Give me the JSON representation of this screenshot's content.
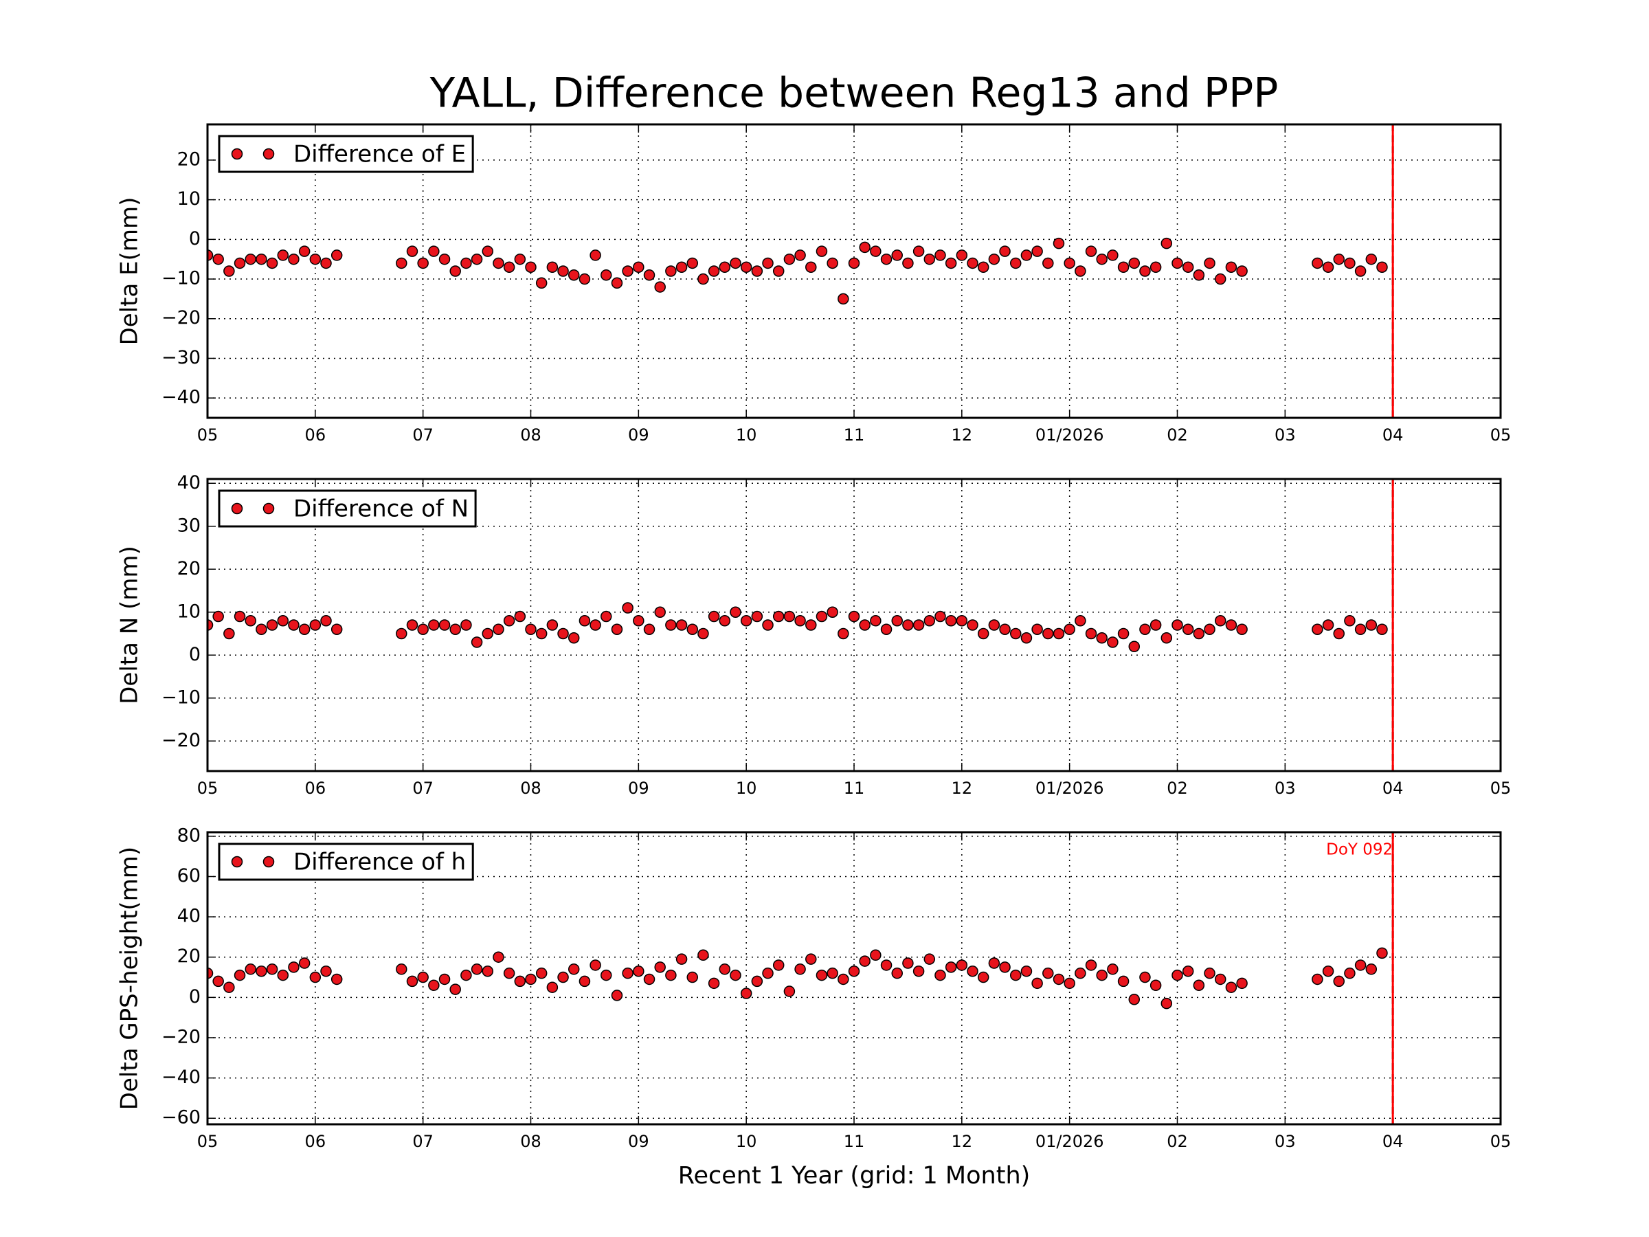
{
  "title": "YALL, Difference between Reg13 and PPP",
  "chart_data": [
    {
      "type": "scatter",
      "ylabel": "Delta E(mm)",
      "x": [
        0.0,
        0.1,
        0.2,
        0.3,
        0.4,
        0.5,
        0.6,
        0.7,
        0.8,
        0.9,
        1.0,
        1.1,
        1.2,
        1.8,
        1.9,
        2.0,
        2.1,
        2.2,
        2.3,
        2.4,
        2.5,
        2.6,
        2.7,
        2.8,
        2.9,
        3.0,
        3.1,
        3.2,
        3.3,
        3.4,
        3.5,
        3.6,
        3.7,
        3.8,
        3.9,
        4.0,
        4.1,
        4.2,
        4.3,
        4.4,
        4.5,
        4.6,
        4.7,
        4.8,
        4.9,
        5.0,
        5.1,
        5.2,
        5.3,
        5.4,
        5.5,
        5.6,
        5.7,
        5.8,
        5.9,
        6.0,
        6.1,
        6.2,
        6.3,
        6.4,
        6.5,
        6.6,
        6.7,
        6.8,
        6.9,
        7.0,
        7.1,
        7.2,
        7.3,
        7.4,
        7.5,
        7.6,
        7.7,
        7.8,
        7.9,
        8.0,
        8.1,
        8.2,
        8.3,
        8.4,
        8.5,
        8.6,
        8.7,
        8.8,
        8.9,
        9.0,
        9.1,
        9.2,
        9.3,
        9.4,
        9.5,
        9.6,
        10.3,
        10.4,
        10.5,
        10.6,
        10.7,
        10.8,
        10.9
      ],
      "series": [
        {
          "name": "Difference of E",
          "color": "#e8141c",
          "values": [
            -4,
            -5,
            -8,
            -6,
            -5,
            -5,
            -6,
            -4,
            -5,
            -3,
            -5,
            -6,
            -4,
            -6,
            -3,
            -6,
            -3,
            -5,
            -8,
            -6,
            -5,
            -3,
            -6,
            -7,
            -5,
            -7,
            -11,
            -7,
            -8,
            -9,
            -10,
            -4,
            -9,
            -11,
            -8,
            -7,
            -9,
            -12,
            -8,
            -7,
            -6,
            -10,
            -8,
            -7,
            -6,
            -7,
            -8,
            -6,
            -8,
            -5,
            -4,
            -7,
            -3,
            -6,
            -15,
            -6,
            -2,
            -3,
            -5,
            -4,
            -6,
            -3,
            -5,
            -4,
            -6,
            -4,
            -6,
            -7,
            -5,
            -3,
            -6,
            -4,
            -3,
            -6,
            -1,
            -6,
            -8,
            -3,
            -5,
            -4,
            -7,
            -6,
            -8,
            -7,
            -1,
            -6,
            -7,
            -9,
            -6,
            -10,
            -7,
            -8,
            -6,
            -7,
            -5,
            -6,
            -8,
            -5,
            -7
          ]
        }
      ],
      "xlim": [
        0,
        12
      ],
      "xticks": [
        {
          "value": 0,
          "label": "05"
        },
        {
          "value": 1,
          "label": "06"
        },
        {
          "value": 2,
          "label": "07"
        },
        {
          "value": 3,
          "label": "08"
        },
        {
          "value": 4,
          "label": "09"
        },
        {
          "value": 5,
          "label": "10"
        },
        {
          "value": 6,
          "label": "11"
        },
        {
          "value": 7,
          "label": "12"
        },
        {
          "value": 8,
          "label": "01/2026"
        },
        {
          "value": 9,
          "label": "02"
        },
        {
          "value": 10,
          "label": "03"
        },
        {
          "value": 11,
          "label": "04"
        },
        {
          "value": 12,
          "label": "05"
        }
      ],
      "ylim": [
        -45,
        29
      ],
      "yticks": [
        {
          "value": -40,
          "label": "−40"
        },
        {
          "value": -30,
          "label": "−30"
        },
        {
          "value": -20,
          "label": "−20"
        },
        {
          "value": -10,
          "label": "−10"
        },
        0,
        10,
        20
      ],
      "grid": true,
      "legend": "upper left",
      "vline_x": 11
    },
    {
      "type": "scatter",
      "ylabel": "Delta N (mm)",
      "x": [
        0.0,
        0.1,
        0.2,
        0.3,
        0.4,
        0.5,
        0.6,
        0.7,
        0.8,
        0.9,
        1.0,
        1.1,
        1.2,
        1.8,
        1.9,
        2.0,
        2.1,
        2.2,
        2.3,
        2.4,
        2.5,
        2.6,
        2.7,
        2.8,
        2.9,
        3.0,
        3.1,
        3.2,
        3.3,
        3.4,
        3.5,
        3.6,
        3.7,
        3.8,
        3.9,
        4.0,
        4.1,
        4.2,
        4.3,
        4.4,
        4.5,
        4.6,
        4.7,
        4.8,
        4.9,
        5.0,
        5.1,
        5.2,
        5.3,
        5.4,
        5.5,
        5.6,
        5.7,
        5.8,
        5.9,
        6.0,
        6.1,
        6.2,
        6.3,
        6.4,
        6.5,
        6.6,
        6.7,
        6.8,
        6.9,
        7.0,
        7.1,
        7.2,
        7.3,
        7.4,
        7.5,
        7.6,
        7.7,
        7.8,
        7.9,
        8.0,
        8.1,
        8.2,
        8.3,
        8.4,
        8.5,
        8.6,
        8.7,
        8.8,
        8.9,
        9.0,
        9.1,
        9.2,
        9.3,
        9.4,
        9.5,
        9.6,
        10.3,
        10.4,
        10.5,
        10.6,
        10.7,
        10.8,
        10.9
      ],
      "series": [
        {
          "name": "Difference of N",
          "color": "#e8141c",
          "values": [
            7,
            9,
            5,
            9,
            8,
            6,
            7,
            8,
            7,
            6,
            7,
            8,
            6,
            5,
            7,
            6,
            7,
            7,
            6,
            7,
            3,
            5,
            6,
            8,
            9,
            6,
            5,
            7,
            5,
            4,
            8,
            7,
            9,
            6,
            11,
            8,
            6,
            10,
            7,
            7,
            6,
            5,
            9,
            8,
            10,
            8,
            9,
            7,
            9,
            9,
            8,
            7,
            9,
            10,
            5,
            9,
            7,
            8,
            6,
            8,
            7,
            7,
            8,
            9,
            8,
            8,
            7,
            5,
            7,
            6,
            5,
            4,
            6,
            5,
            5,
            6,
            8,
            5,
            4,
            3,
            5,
            2,
            6,
            7,
            4,
            7,
            6,
            5,
            6,
            8,
            7,
            6,
            6,
            7,
            5,
            8,
            6,
            7,
            6
          ]
        }
      ],
      "xlim": [
        0,
        12
      ],
      "xticks": [
        {
          "value": 0,
          "label": "05"
        },
        {
          "value": 1,
          "label": "06"
        },
        {
          "value": 2,
          "label": "07"
        },
        {
          "value": 3,
          "label": "08"
        },
        {
          "value": 4,
          "label": "09"
        },
        {
          "value": 5,
          "label": "10"
        },
        {
          "value": 6,
          "label": "11"
        },
        {
          "value": 7,
          "label": "12"
        },
        {
          "value": 8,
          "label": "01/2026"
        },
        {
          "value": 9,
          "label": "02"
        },
        {
          "value": 10,
          "label": "03"
        },
        {
          "value": 11,
          "label": "04"
        },
        {
          "value": 12,
          "label": "05"
        }
      ],
      "ylim": [
        -27,
        41
      ],
      "yticks": [
        {
          "value": -20,
          "label": "−20"
        },
        {
          "value": -10,
          "label": "−10"
        },
        0,
        10,
        20,
        30,
        40
      ],
      "grid": true,
      "legend": "upper left",
      "vline_x": 11
    },
    {
      "type": "scatter",
      "ylabel": "Delta GPS-height(mm)",
      "xlabel": "Recent 1 Year (grid: 1 Month)",
      "x": [
        0.0,
        0.1,
        0.2,
        0.3,
        0.4,
        0.5,
        0.6,
        0.7,
        0.8,
        0.9,
        1.0,
        1.1,
        1.2,
        1.8,
        1.9,
        2.0,
        2.1,
        2.2,
        2.3,
        2.4,
        2.5,
        2.6,
        2.7,
        2.8,
        2.9,
        3.0,
        3.1,
        3.2,
        3.3,
        3.4,
        3.5,
        3.6,
        3.7,
        3.8,
        3.9,
        4.0,
        4.1,
        4.2,
        4.3,
        4.4,
        4.5,
        4.6,
        4.7,
        4.8,
        4.9,
        5.0,
        5.1,
        5.2,
        5.3,
        5.4,
        5.5,
        5.6,
        5.7,
        5.8,
        5.9,
        6.0,
        6.1,
        6.2,
        6.3,
        6.4,
        6.5,
        6.6,
        6.7,
        6.8,
        6.9,
        7.0,
        7.1,
        7.2,
        7.3,
        7.4,
        7.5,
        7.6,
        7.7,
        7.8,
        7.9,
        8.0,
        8.1,
        8.2,
        8.3,
        8.4,
        8.5,
        8.6,
        8.7,
        8.8,
        8.9,
        9.0,
        9.1,
        9.2,
        9.3,
        9.4,
        9.5,
        9.6,
        10.3,
        10.4,
        10.5,
        10.6,
        10.7,
        10.8,
        10.9
      ],
      "series": [
        {
          "name": "Difference of h",
          "color": "#e8141c",
          "values": [
            12,
            8,
            5,
            11,
            14,
            13,
            14,
            11,
            15,
            17,
            10,
            13,
            9,
            14,
            8,
            10,
            6,
            9,
            4,
            11,
            14,
            13,
            20,
            12,
            8,
            9,
            12,
            5,
            10,
            14,
            8,
            16,
            11,
            1,
            12,
            13,
            9,
            15,
            11,
            19,
            10,
            21,
            7,
            14,
            11,
            2,
            8,
            12,
            16,
            3,
            14,
            19,
            11,
            12,
            9,
            13,
            18,
            21,
            16,
            12,
            17,
            13,
            19,
            11,
            15,
            16,
            13,
            10,
            17,
            15,
            11,
            13,
            7,
            12,
            9,
            7,
            12,
            16,
            11,
            14,
            8,
            -1,
            10,
            6,
            -3,
            11,
            13,
            6,
            12,
            9,
            5,
            7,
            9,
            13,
            8,
            12,
            16,
            14,
            22
          ]
        }
      ],
      "xlim": [
        0,
        12
      ],
      "xticks": [
        {
          "value": 0,
          "label": "05"
        },
        {
          "value": 1,
          "label": "06"
        },
        {
          "value": 2,
          "label": "07"
        },
        {
          "value": 3,
          "label": "08"
        },
        {
          "value": 4,
          "label": "09"
        },
        {
          "value": 5,
          "label": "10"
        },
        {
          "value": 6,
          "label": "11"
        },
        {
          "value": 7,
          "label": "12"
        },
        {
          "value": 8,
          "label": "01/2026"
        },
        {
          "value": 9,
          "label": "02"
        },
        {
          "value": 10,
          "label": "03"
        },
        {
          "value": 11,
          "label": "04"
        },
        {
          "value": 12,
          "label": "05"
        }
      ],
      "ylim": [
        -63,
        82
      ],
      "yticks": [
        {
          "value": -60,
          "label": "−60"
        },
        {
          "value": -40,
          "label": "−40"
        },
        {
          "value": -20,
          "label": "−20"
        },
        0,
        20,
        40,
        60,
        80
      ],
      "grid": true,
      "legend": "upper left",
      "vline_x": 11,
      "annotation": "DoY 092"
    }
  ]
}
